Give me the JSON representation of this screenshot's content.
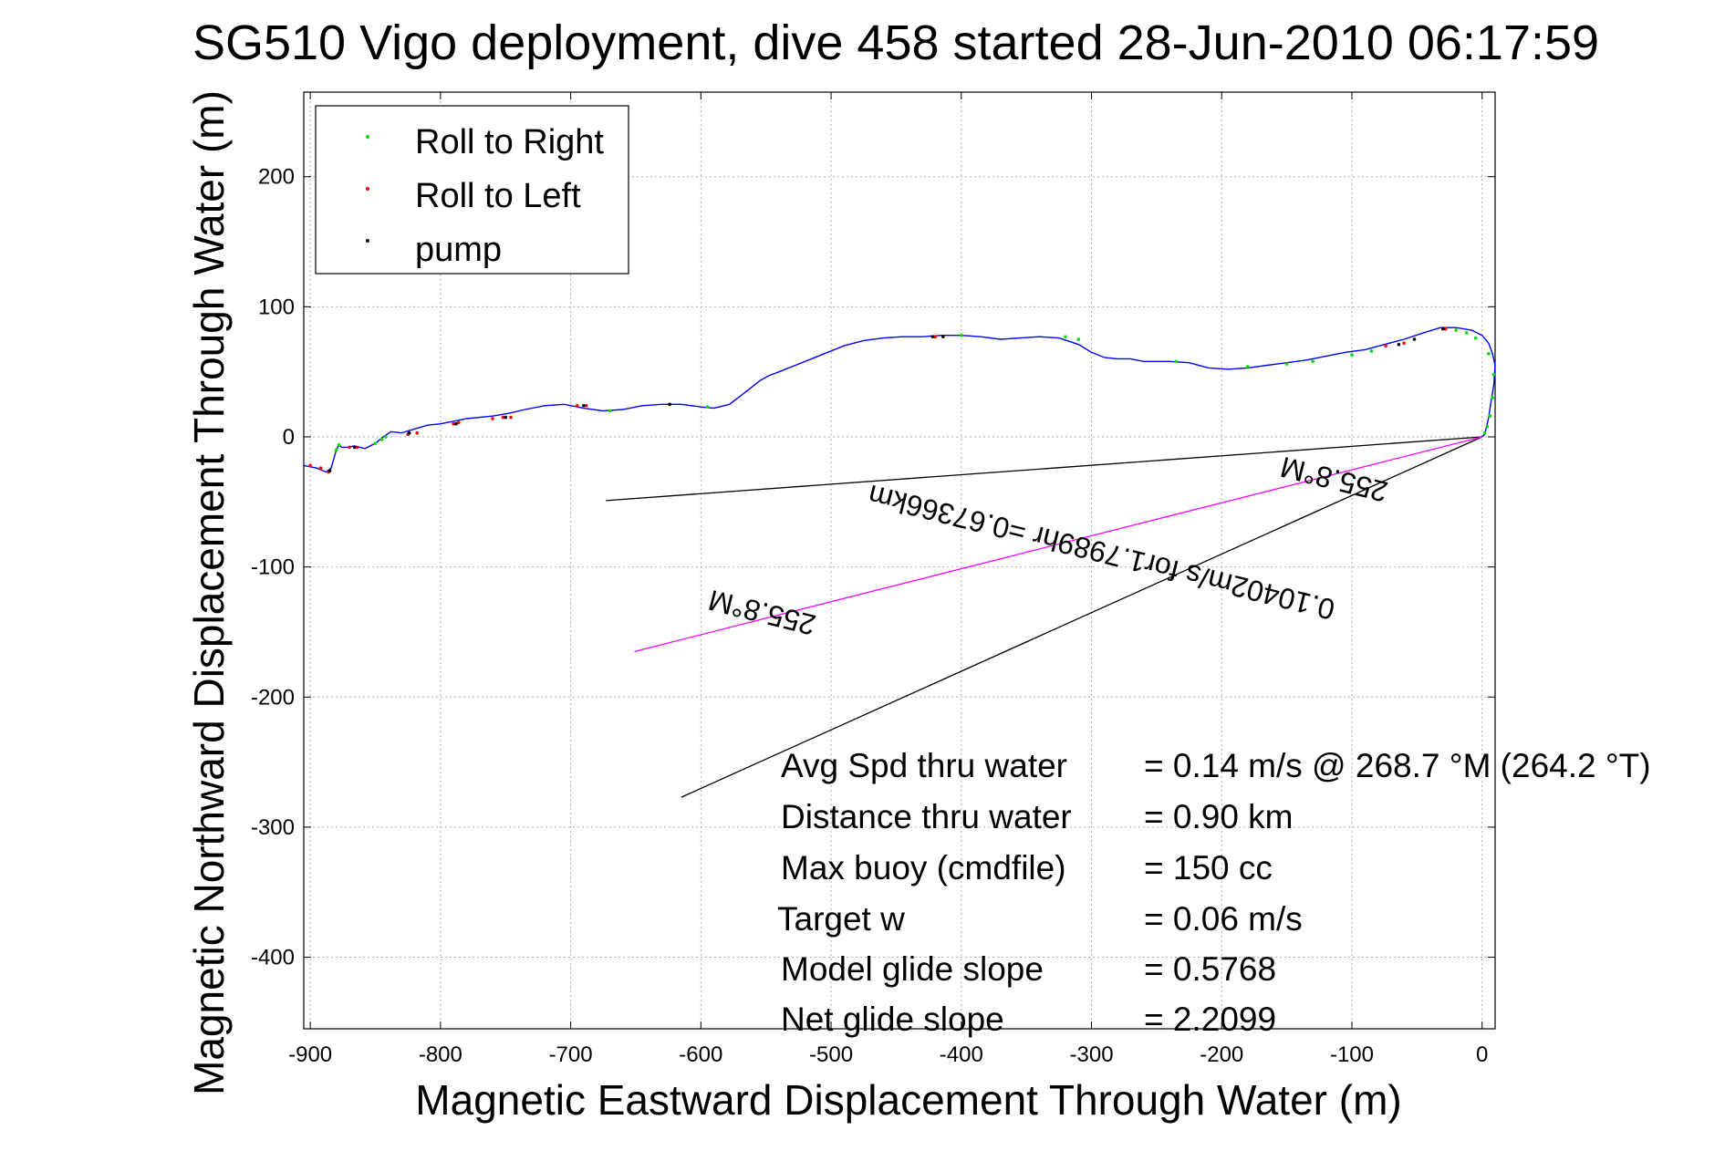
{
  "figure": {
    "title": "SG510 Vigo deployment, dive 458 started 28-Jun-2010 06:17:59",
    "colors": {
      "track": "#0000ff",
      "roll_right": "#00dd00",
      "roll_left": "#ff0000",
      "pump": "#000000",
      "magenta": "#ff00ff",
      "axes": "#000000",
      "grid": "#b0b0b0"
    }
  },
  "chart_data": {
    "type": "line",
    "title": "SG510 Vigo deployment, dive 458 started 28-Jun-2010 06:17:59",
    "xlabel": "Magnetic Eastward Displacement Through Water (m)",
    "ylabel": "Magnetic Northward Displacement Through Water (m)",
    "xlim": [
      -905,
      10
    ],
    "ylim": [
      -455,
      265
    ],
    "xticks": [
      -900,
      -800,
      -700,
      -600,
      -500,
      -400,
      -300,
      -200,
      -100,
      0
    ],
    "yticks": [
      -400,
      -300,
      -200,
      -100,
      0,
      100,
      200
    ],
    "grid": true,
    "legend": {
      "position": "top-left",
      "entries": [
        "Roll to Right",
        "Roll to Left",
        "pump"
      ]
    },
    "series": [
      {
        "name": "track",
        "x": [
          -905,
          -895,
          -888,
          -884,
          -880,
          -878,
          -876,
          -872,
          -866,
          -858,
          -850,
          -844,
          -838,
          -830,
          -820,
          -810,
          -800,
          -790,
          -780,
          -770,
          -760,
          -748,
          -735,
          -720,
          -705,
          -690,
          -675,
          -660,
          -645,
          -630,
          -615,
          -600,
          -590,
          -578,
          -565,
          -555,
          -548,
          -540,
          -530,
          -520,
          -505,
          -490,
          -475,
          -460,
          -445,
          -430,
          -415,
          -400,
          -385,
          -370,
          -355,
          -340,
          -325,
          -310,
          -300,
          -290,
          -280,
          -270,
          -260,
          -250,
          -240,
          -225,
          -210,
          -195,
          -180,
          -165,
          -150,
          -135,
          -120,
          -105,
          -90,
          -75,
          -60,
          -45,
          -32,
          -20,
          -8,
          0,
          5,
          8,
          10,
          9,
          7,
          5,
          3,
          2,
          0
        ],
        "y": [
          -22,
          -24,
          -27,
          -24,
          -10,
          -6,
          -8,
          -8,
          -7,
          -9,
          -5,
          0,
          4,
          3,
          6,
          9,
          10,
          12,
          14,
          15,
          16,
          18,
          21,
          24,
          25,
          22,
          20,
          21,
          24,
          25,
          25,
          23,
          22,
          25,
          35,
          43,
          47,
          50,
          54,
          58,
          64,
          70,
          74,
          76,
          77,
          77,
          78,
          78,
          77,
          75,
          76,
          77,
          76,
          71,
          65,
          61,
          60,
          60,
          58,
          58,
          58,
          57,
          53,
          52,
          53,
          55,
          57,
          59,
          62,
          65,
          67,
          71,
          75,
          80,
          84,
          84,
          82,
          78,
          72,
          64,
          55,
          40,
          28,
          15,
          6,
          2,
          0
        ]
      },
      {
        "name": "Roll to Right",
        "x": [
          -880,
          -878,
          -850,
          -845,
          -842,
          -670,
          -595,
          -420,
          -400,
          -320,
          -310,
          -235,
          -180,
          -150,
          -130,
          -100,
          -85,
          -20,
          -12,
          -5,
          5,
          9,
          8,
          6,
          4,
          2
        ],
        "y": [
          -10,
          -6,
          -5,
          -2,
          0,
          20,
          23,
          77,
          78,
          77,
          75,
          58,
          54,
          56,
          58,
          63,
          66,
          82,
          80,
          76,
          64,
          48,
          30,
          16,
          8,
          3
        ]
      },
      {
        "name": "Roll to Left",
        "x": [
          -900,
          -892,
          -886,
          -870,
          -864,
          -825,
          -818,
          -790,
          -786,
          -760,
          -752,
          -746,
          -695,
          -688,
          -624,
          -420,
          -74,
          -60,
          -28
        ],
        "y": [
          -22,
          -24,
          -27,
          -8,
          -8,
          2,
          3,
          10,
          11,
          14,
          15,
          15,
          24,
          24,
          25,
          77,
          70,
          72,
          83
        ]
      },
      {
        "name": "pump",
        "x": [
          -885,
          -866,
          -824,
          -788,
          -750,
          -690,
          -624,
          -422,
          -414,
          -64,
          -52,
          -30
        ],
        "y": [
          -26,
          -8,
          3,
          10,
          15,
          24,
          25,
          77,
          77,
          71,
          75,
          83
        ]
      },
      {
        "name": "heading-lines",
        "lines": [
          {
            "x": [
              0,
              -673
            ],
            "y": [
              0,
              -49
            ]
          },
          {
            "x": [
              0,
              -615
            ],
            "y": [
              0,
              -277
            ]
          },
          {
            "x": [
              0,
              -651
            ],
            "y": [
              0,
              -165
            ]
          }
        ]
      }
    ],
    "annotations": {
      "rotated_heading_a": "255.8°M",
      "rotated_current": "0.10402m/s for1.7989hr =0.67366km",
      "rotated_heading_b": "255.8°M",
      "stats": [
        {
          "label": "Avg Spd thru water",
          "value": "=  0.14 m/s @ 268.7  °M (264.2 °T)"
        },
        {
          "label": "Distance thru water",
          "value": "=  0.90 km"
        },
        {
          "label": "Max buoy (cmdfile)",
          "value": "= 150 cc"
        },
        {
          "label": "Target w",
          "value": "= 0.06 m/s"
        },
        {
          "label": "Model glide slope",
          "value": "= 0.5768"
        },
        {
          "label": "Net glide slope",
          "value": "= 2.2099"
        }
      ]
    }
  }
}
